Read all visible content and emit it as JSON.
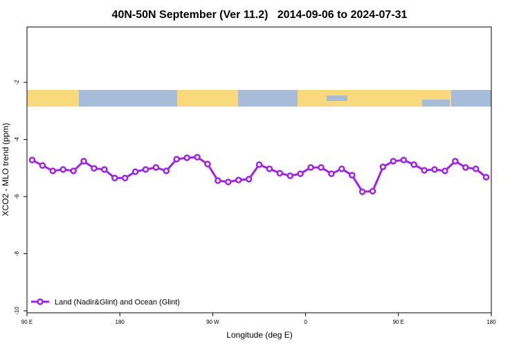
{
  "chart_data": {
    "type": "line",
    "title": "40N-50N September (Ver 11.2)   2014-09-06 to 2024-07-31",
    "x_label": "Longitude (deg E)",
    "y_label": "XCO2 - MLO trend (ppm)",
    "x": [
      95,
      105,
      115,
      125,
      135,
      145,
      155,
      165,
      175,
      185,
      195,
      205,
      215,
      225,
      235,
      245,
      255,
      265,
      275,
      285,
      295,
      305,
      315,
      325,
      335,
      345,
      355,
      365,
      375,
      385,
      395,
      405,
      415,
      425,
      435,
      445,
      455,
      465,
      475,
      485,
      495,
      505,
      515,
      525,
      535
    ],
    "series": [
      {
        "name": "Land (Nadir&Glint) and Ocean (Glint)",
        "color": "#a020f0",
        "values": [
          -4.72,
          -4.91,
          -5.1,
          -5.05,
          -5.1,
          -4.76,
          -5.01,
          -5.05,
          -5.35,
          -5.35,
          -5.13,
          -5.05,
          -4.98,
          -5.1,
          -4.69,
          -4.64,
          -4.62,
          -4.86,
          -5.44,
          -5.49,
          -5.42,
          -5.39,
          -4.88,
          -5.03,
          -5.18,
          -5.27,
          -5.2,
          -4.98,
          -4.98,
          -5.2,
          -5.03,
          -5.25,
          -5.83,
          -5.81,
          -4.96,
          -4.76,
          -4.72,
          -4.88,
          -5.08,
          -5.05,
          -5.1,
          -4.76,
          -4.98,
          -5.03,
          -5.32
        ]
      }
    ],
    "xlim": [
      90,
      540
    ],
    "xticks": [
      {
        "value": 90,
        "label": "90 E"
      },
      {
        "value": 180,
        "label": "180"
      },
      {
        "value": 270,
        "label": "90 W"
      },
      {
        "value": 360,
        "label": "0"
      },
      {
        "value": 450,
        "label": "90 E"
      },
      {
        "value": 540,
        "label": "180"
      }
    ],
    "ylim": [
      -10.07,
      -0.06
    ],
    "yticks": [
      -2,
      -4,
      -6,
      -8,
      -10
    ],
    "legend": "lower left"
  }
}
